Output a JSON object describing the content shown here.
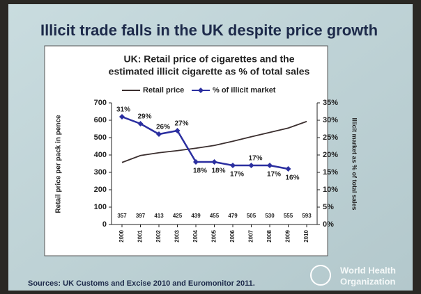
{
  "slide": {
    "title": "Illicit trade falls in the UK despite price growth",
    "source": "Sources: UK Customs and Excise 2010 and Euromonitor 2011.",
    "logo": [
      "World Health",
      "Organization"
    ]
  },
  "chart_data": {
    "type": "line",
    "title": [
      "UK: Retail price of cigarettes and the",
      "estimated illicit cigarette as % of total sales"
    ],
    "y_label": "Retail price per pack in pence",
    "y2_label": "Illicit market as % of total sales",
    "categories": [
      "2000",
      "2001",
      "2002",
      "2003",
      "2004",
      "2005",
      "2006",
      "2007",
      "2008",
      "2009",
      "2010"
    ],
    "series": [
      {
        "name": "Retail price",
        "color": "#3b2f2f",
        "values": [
          357,
          397,
          413,
          425,
          439,
          455,
          479,
          505,
          530,
          555,
          593
        ]
      },
      {
        "name": "% of illicit market",
        "color": "#2b2fa0",
        "axis": "y2",
        "values": [
          31,
          29,
          26,
          27,
          18,
          18,
          17,
          17,
          17,
          16,
          null
        ],
        "value_labels": [
          "31%",
          "29%",
          "26%",
          "27%",
          "18%",
          "18%",
          "17%",
          "17%",
          "17%",
          "16%",
          null
        ]
      }
    ],
    "ylim": [
      0,
      700
    ],
    "yticks": [
      0,
      100,
      200,
      300,
      400,
      500,
      600,
      700
    ],
    "y2lim": [
      0,
      35
    ],
    "y2ticks": [
      {
        "value": 0,
        "label": "0%"
      },
      {
        "value": 5,
        "label": "5%"
      },
      {
        "value": 10,
        "label": "10%"
      },
      {
        "value": 15,
        "label": "15%"
      },
      {
        "value": 20,
        "label": "20%"
      },
      {
        "value": 25,
        "label": "25%"
      },
      {
        "value": 30,
        "label": "30%"
      },
      {
        "value": 35,
        "label": "35%"
      }
    ],
    "legend": "top",
    "grid": false
  }
}
